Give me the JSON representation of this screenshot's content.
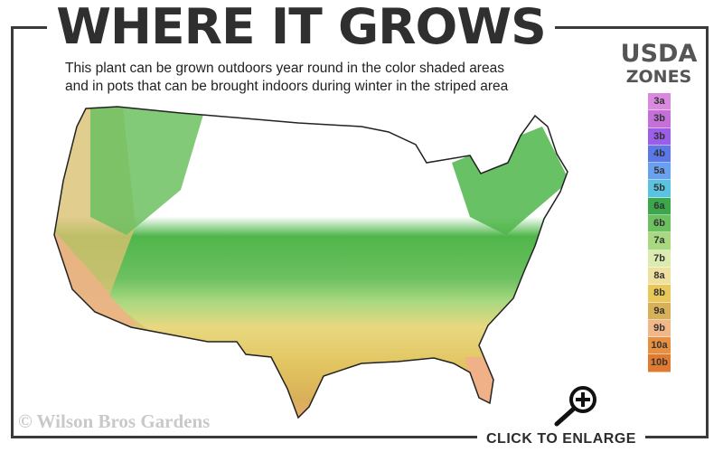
{
  "header": {
    "title": "WHERE IT GROWS",
    "subtitle_line1": "This plant can be grown outdoors year round in the color shaded areas",
    "subtitle_line2": "and in pots that can be brought indoors during winter in the striped area"
  },
  "legend": {
    "title_line1": "USDA",
    "title_line2": "ZONES",
    "zones": [
      {
        "label": "3a",
        "color": "#d98ae0"
      },
      {
        "label": "3b",
        "color": "#c470d8"
      },
      {
        "label": "3b",
        "color": "#9a5ee8"
      },
      {
        "label": "4b",
        "color": "#5a78e8"
      },
      {
        "label": "5a",
        "color": "#6aa0f0"
      },
      {
        "label": "5b",
        "color": "#5ac4e0"
      },
      {
        "label": "6a",
        "color": "#3aa84a"
      },
      {
        "label": "6b",
        "color": "#6cc060"
      },
      {
        "label": "7a",
        "color": "#a8d880"
      },
      {
        "label": "7b",
        "color": "#dcecb0"
      },
      {
        "label": "8a",
        "color": "#f0e0a0"
      },
      {
        "label": "8b",
        "color": "#e8c858"
      },
      {
        "label": "9a",
        "color": "#d8b058"
      },
      {
        "label": "9b",
        "color": "#f0b888"
      },
      {
        "label": "10a",
        "color": "#e89040"
      },
      {
        "label": "10b",
        "color": "#e07a30"
      }
    ]
  },
  "watermark": "© Wilson Bros Gardens",
  "enlarge_label": "CLICK TO ENLARGE",
  "icons": {
    "enlarge": "magnifier-plus-icon"
  }
}
